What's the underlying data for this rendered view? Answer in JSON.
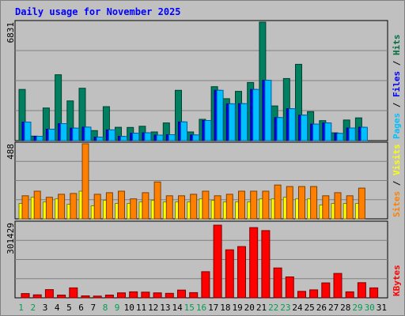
{
  "chart_data": {
    "type": "bar",
    "title": "Daily usage for November 2025",
    "categories": [
      "1",
      "2",
      "3",
      "4",
      "5",
      "6",
      "7",
      "8",
      "9",
      "10",
      "11",
      "12",
      "13",
      "14",
      "15",
      "16",
      "17",
      "18",
      "19",
      "20",
      "21",
      "22",
      "23",
      "24",
      "25",
      "26",
      "27",
      "28",
      "29",
      "30",
      "31"
    ],
    "weekend_days": [
      "1",
      "2",
      "8",
      "9",
      "15",
      "16",
      "22",
      "23",
      "29",
      "30"
    ],
    "panels": [
      {
        "id": "top",
        "ymax_label": "6831",
        "ymax": 6831,
        "legend": [
          "Pages",
          "Files",
          "Hits"
        ],
        "legend_colors": [
          "#00c0ff",
          "#0000ff",
          "#007040"
        ],
        "series": [
          {
            "name": "Hits",
            "values": [
              2950,
              260,
              1880,
              3800,
              2290,
              3020,
              580,
              1960,
              770,
              760,
              830,
              500,
              1020,
              2900,
              500,
              1230,
              3110,
              2420,
              2840,
              3350,
              6831,
              2000,
              3580,
              4400,
              1670,
              1150,
              450,
              1190,
              1310,
              0,
              0
            ]
          },
          {
            "name": "Files",
            "values": [
              1070,
              250,
              660,
              980,
              720,
              780,
              200,
              620,
              240,
              430,
              450,
              320,
              340,
              1080,
              330,
              1160,
              2900,
              2120,
              2130,
              2950,
              3480,
              1330,
              1840,
              1470,
              950,
              1020,
              420,
              730,
              770,
              0,
              0
            ]
          },
          {
            "name": "Pages",
            "values": [
              1070,
              250,
              660,
              980,
              720,
              780,
              200,
              620,
              240,
              430,
              450,
              320,
              340,
              1080,
              330,
              1160,
              2900,
              2120,
              2130,
              2950,
              3480,
              1330,
              1840,
              1470,
              950,
              1020,
              420,
              730,
              770,
              0,
              0
            ]
          }
        ]
      },
      {
        "id": "middle",
        "ymax_label": "488",
        "ymax": 488,
        "legend": [
          "Sites",
          "Visits"
        ],
        "legend_colors": [
          "#ff8000",
          "#ffff00"
        ],
        "series": [
          {
            "name": "Visits",
            "values": [
              100,
              140,
              110,
              130,
              95,
              180,
              85,
              120,
              100,
              100,
              110,
              120,
              110,
              110,
              110,
              130,
              120,
              110,
              110,
              110,
              130,
              130,
              140,
              130,
              130,
              90,
              100,
              100,
              100,
              0,
              0
            ]
          },
          {
            "name": "Sites",
            "values": [
              150,
              180,
              140,
              160,
              165,
              488,
              160,
              170,
              180,
              130,
              170,
              240,
              150,
              150,
              160,
              180,
              150,
              160,
              180,
              180,
              180,
              220,
              210,
              210,
              210,
              150,
              170,
              150,
              200,
              0,
              0
            ]
          }
        ]
      },
      {
        "id": "bottom",
        "ymax_label": "301429",
        "ymax": 301429,
        "legend": [
          "KBytes"
        ],
        "legend_colors": [
          "#ff0000"
        ],
        "series": [
          {
            "name": "KBytes",
            "values": [
              17000,
              12000,
              33000,
              11000,
              40000,
              8000,
              7000,
              11000,
              20000,
              24000,
              23000,
              20000,
              18000,
              31000,
              21000,
              105000,
              292000,
              193000,
              206000,
              282000,
              270000,
              120000,
              84000,
              26000,
              32000,
              60000,
              98000,
              24000,
              61000,
              40000,
              0
            ]
          }
        ]
      }
    ]
  }
}
